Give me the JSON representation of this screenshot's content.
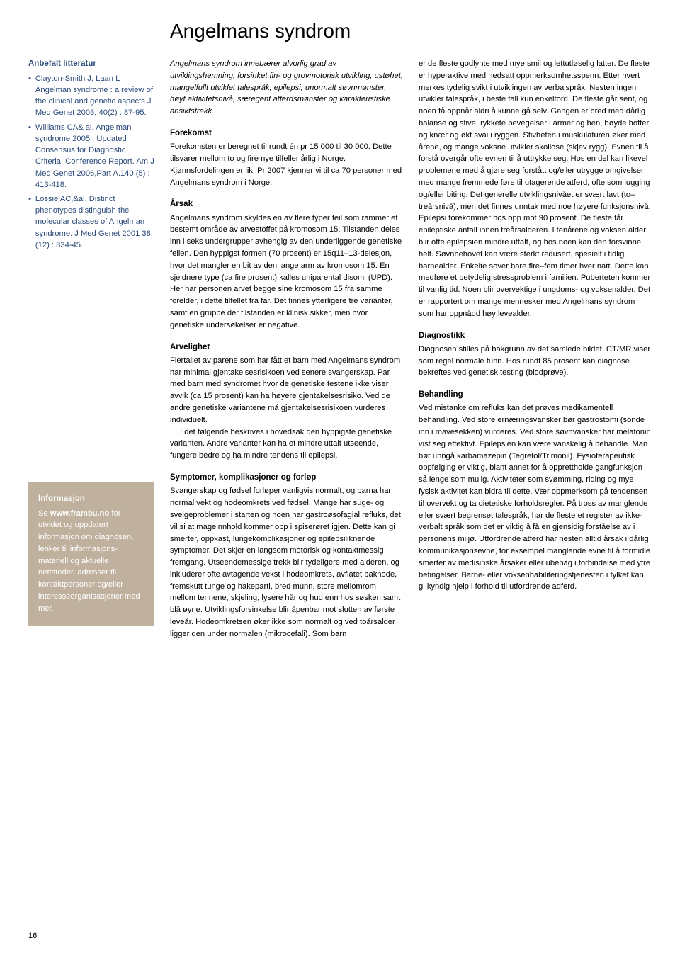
{
  "title": "Angelmans syndrom",
  "sidebar": {
    "lit_heading": "Anbefalt litteratur",
    "lit_items": [
      "Clayton-Smith J, Laan L Angelman syndrome : a review of the clinical and genetic aspects J Med Genet 2003, 40(2) : 87-95.",
      "Williams CA& al. Angelman syndrome 2005 : Updated Consensus for Diagnostic Criteria, Conference Report. Am J Med Genet 2006,Part A.140 (5) : 413-418.",
      "Lossie AC,&al. Distinct phenotypes distinguish the molecular classes of Angelman syndrome. J Med Genet 2001 38 (12) : 834-45."
    ],
    "info_heading": "Informasjon",
    "info_prefix": "Se ",
    "info_link": "www.frambu.no",
    "info_rest": " for utvidet og oppdatert informasjon om diagnosen, lenker til informasjons­materiell og aktuelle nettsteder, adresser til kontaktpersoner og/eller interesseorganisasjoner med mer."
  },
  "col1": {
    "intro": "Angelmans syndrom innebærer alvorlig grad av utviklingshemning, forsinket fin- og grovmotorisk utvikling, ustøhet, mangelfullt utviklet talespråk, epilepsi, unormalt søvnmønster, høyt aktivitets­nivå, særegent atferdsmønster og karakteristiske ansiktstrekk.",
    "h_forekomst": "Forekomst",
    "p_forekomst": "Forekomsten er beregnet til rundt én pr 15 000 til 30 000. Dette tilsvarer mellom to og fire nye tilfeller årlig i Norge. Kjønnsfordelingen er lik. Pr 2007 kjenner vi til ca 70 personer med Angelmans syndrom i Norge.",
    "h_arsak": "Årsak",
    "p_arsak": "Angelmans syndrom skyldes en av flere typer feil som rammer et bestemt område av arvestoffet på kromosom 15. Tilstanden deles inn i seks undergrupper avhengig av den underliggende genetiske feilen. Den hyppigst formen (70 prosent) er 15q11–13-delesjon, hvor det mangler en bit av den lange arm av kromosom 15. En sjeldnere type (ca fire prosent) kalles uniparental disomi (UPD). Her har personen arvet begge sine kromosom 15 fra samme forelder, i dette tilfellet fra far. Det finnes ytterligere tre varianter, samt en gruppe der tilstanden er klinisk sikker, men hvor genetiske undersøkelser er negative.",
    "h_arvelighet": "Arvelighet",
    "p_arvelighet1": "Flertallet av parene som har fått et barn med Angelmans syndrom har minimal gjentakelses­risikoen ved senere svangerskap. Par med barn med syndromet hvor de genetiske testene ikke viser avvik (ca 15 prosent) kan ha høyere gjen­takelsesrisiko. Ved de andre genetiske variantene må gjentakelsesrisikoen vurderes individuelt.",
    "p_arvelighet2": "I det følgende beskrives i hovedsak den hyppigste genetiske varianten. Andre varianter kan ha et mindre uttalt utseende, fungere bedre og ha mindre tendens til epilepsi.",
    "h_symptomer": "Symptomer, komplikasjoner og forløp",
    "p_symptomer": "Svangerskap og fødsel forløper vanligvis normalt, og barna har normal vekt og hodeomkrets ved fødsel. Mange har suge- og svelgeproblemer i starten og noen har gastroøsofagial refluks, det vil si at mageinnhold kommer opp i spiserøret igjen. Dette kan gi smerter, oppkast, lungekomplika­sjoner og epilepsiliknende symptomer. Det skjer en langsom motorisk og kontaktmessig fremgang. Utseendemessige trekk blir tydeligere med alderen, og inkluderer ofte avtagende vekst i hodeomkrets, avflatet bakhode, fremskutt tunge og hakeparti, bred munn, store mellomrom mellom tennene, skjeling, lysere hår og hud enn hos søsken samt blå øyne. Utviklingsforsinkelse blir åpenbar mot slutten av første leveår. Hodeom­kretsen øker ikke som normalt og ved toårsalder ligger den under normalen (mikrocefali). Som barn"
  },
  "col2": {
    "p_cont": "er de fleste godlynte med mye smil og lettutløselig latter. De fleste er hyperaktive med nedsatt oppmerksomhetsspenn. Etter hvert merkes tydelig svikt i utviklingen av verbalspråk. Nesten ingen utvikler talespråk, i beste fall kun enkeltord. De fleste går sent, og noen få oppnår aldri å kunne gå selv. Gangen er bred med dårlig balanse og stive, rykkete bevegelser i armer og ben, bøyde hofter og knær og økt svai i ryggen. Stivheten i muskula­turen øker med årene, og mange voksne utvikler skoliose (skjev rygg). Evnen til å forstå overgår ofte evnen til å uttrykke seg. Hos en del kan likevel problemene med å gjøre seg forstått og/eller utrygge omgivelser med mange fremmede føre til utagerende atferd, ofte som lugging og/eller biting. Det generelle utviklingsnivået er svært lavt (to–treårsnivå), men det finnes unntak med noe høyere funksjonsnivå. Epilepsi forekommer hos opp mot 90 prosent. De fleste får epileptiske anfall innen treårsalderen. I tenårene og voksen alder blir ofte epilepsien mindre uttalt, og hos noen kan den forsvinne helt. Søvnbehovet kan være sterkt redusert, spesielt i tidlig barnealder. Enkelte sover bare fire–fem timer hver natt. Dette kan medføre et betydelig stressproblem i familien. Puberteten kommer til vanlig tid. Noen blir overvektige i ungdoms- og voksenalder. Det er rapportert om mange mennesker med Angelmans syndrom som har oppnådd høy levealder.",
    "h_diagnostikk": "Diagnostikk",
    "p_diagnostikk": "Diagnosen stilles på bakgrunn av det samlede bildet. CT/MR viser som regel normale funn. Hos rundt 85 prosent kan diagnose bekreftes ved genetisk testing (blodprøve).",
    "h_behandling": "Behandling",
    "p_behandling": "Ved mistanke om refluks kan det prøves medika­mentell behandling. Ved store ernæringsvansker bør gastrostomi (sonde inn i mavesekken) vurderes. Ved store søvnvansker har melatonin vist seg effektivt. Epilepsien kan være vanskelig å behandle. Man bør unngå karbamazepin (Tegretol/Trimonil). Fysioterapeutisk oppfølging er viktig, blant annet for å opprettholde gangfunksjon så lenge som mulig. Aktiviteter som svømming, riding og mye fysisk aktivitet kan bidra til dette. Vær oppmerksom på tendensen til overvekt og ta dietetiske forholdsregler. På tross av manglende eller svært begrenset talespråk, har de fleste et register av ikke-verbalt språk som det er viktig å få en gjensidig forståelse av i personens miljø. Utfordrende atferd har nesten alltid årsak i dårlig kommunikasjonsevne, for eksempel manglende evne til å formidle smerter av medisinske årsaker eller ubehag i forbindelse med ytre betingelser. Barne- eller voksenhabiliteringstjenesten i fylket kan gi kyndig hjelp i forhold til utfordrende adferd."
  },
  "page_number": "16"
}
